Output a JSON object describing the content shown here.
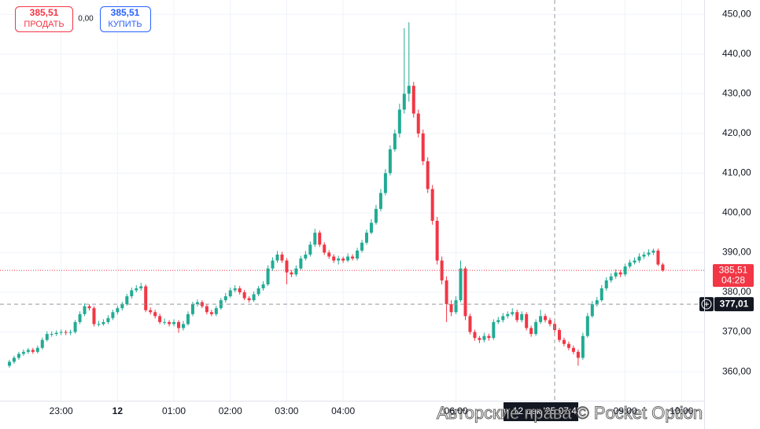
{
  "chart_data": {
    "type": "candlestick",
    "x": [
      "22:05",
      "22:10",
      "22:15",
      "22:20",
      "22:25",
      "22:30",
      "22:35",
      "22:40",
      "22:45",
      "22:50",
      "22:55",
      "23:00",
      "23:05",
      "23:10",
      "23:15",
      "23:20",
      "23:25",
      "23:30",
      "23:35",
      "23:40",
      "23:45",
      "23:50",
      "23:55",
      "00:00",
      "00:05",
      "00:10",
      "00:15",
      "00:20",
      "00:25",
      "00:30",
      "00:35",
      "00:40",
      "00:45",
      "00:50",
      "00:55",
      "01:00",
      "01:05",
      "01:10",
      "01:15",
      "01:20",
      "01:25",
      "01:30",
      "01:35",
      "01:40",
      "01:45",
      "01:50",
      "01:55",
      "02:00",
      "02:05",
      "02:10",
      "02:15",
      "02:20",
      "02:25",
      "02:30",
      "02:35",
      "02:40",
      "02:45",
      "02:50",
      "02:55",
      "03:00",
      "03:05",
      "03:10",
      "03:15",
      "03:20",
      "03:25",
      "03:30",
      "03:35",
      "03:40",
      "03:45",
      "03:50",
      "03:55",
      "04:00",
      "04:05",
      "04:10",
      "04:15",
      "04:20",
      "04:25",
      "04:30",
      "04:35",
      "04:40",
      "04:45",
      "04:50",
      "04:55",
      "05:00",
      "05:05",
      "05:10",
      "05:15",
      "05:20",
      "05:25",
      "05:30",
      "05:35",
      "05:40",
      "05:45",
      "05:50",
      "05:55",
      "06:00",
      "06:05",
      "06:10",
      "06:15",
      "06:20",
      "06:25",
      "06:30",
      "06:35",
      "06:40",
      "06:45",
      "06:50",
      "06:55",
      "07:00",
      "07:05",
      "07:10",
      "07:15",
      "07:20",
      "07:25",
      "07:30",
      "07:35",
      "07:40",
      "07:45",
      "07:50",
      "07:55",
      "08:00",
      "08:05",
      "08:10",
      "08:15",
      "08:20",
      "08:25",
      "08:30",
      "08:35",
      "08:40",
      "08:45",
      "08:50",
      "08:55",
      "09:00",
      "09:05",
      "09:10",
      "09:15",
      "09:20",
      "09:25",
      "09:30",
      "09:35",
      "09:40"
    ],
    "ohlc": [
      [
        361.5,
        363,
        361,
        362.5
      ],
      [
        362.5,
        364,
        362,
        363.5
      ],
      [
        363.5,
        365,
        363,
        364.5
      ],
      [
        364.5,
        365.6,
        364,
        365
      ],
      [
        365,
        366,
        364.5,
        365.5
      ],
      [
        365.5,
        366,
        364.5,
        365
      ],
      [
        365,
        366.6,
        364.6,
        366
      ],
      [
        366,
        368.6,
        365.6,
        368
      ],
      [
        368,
        370.2,
        367.6,
        369.5
      ],
      [
        369.5,
        370.2,
        368.8,
        369.5
      ],
      [
        369.5,
        370.4,
        369,
        369.8
      ],
      [
        369.8,
        370.6,
        369.2,
        370
      ],
      [
        370,
        370.5,
        369.2,
        369.8
      ],
      [
        369.8,
        370.6,
        369.2,
        370
      ],
      [
        370,
        373,
        369.6,
        372.5
      ],
      [
        372.5,
        375.2,
        372,
        374.5
      ],
      [
        374.5,
        377.2,
        374,
        376.5
      ],
      [
        376.5,
        377,
        375.4,
        376
      ],
      [
        376,
        376.5,
        371.4,
        372
      ],
      [
        372,
        372.8,
        371.4,
        372
      ],
      [
        372,
        373.2,
        371.6,
        372.5
      ],
      [
        372.5,
        374.2,
        372,
        373.5
      ],
      [
        373.5,
        375.6,
        373,
        375
      ],
      [
        375,
        376.6,
        374.4,
        376
      ],
      [
        376,
        377.6,
        375.4,
        377
      ],
      [
        377,
        379.6,
        376.6,
        379
      ],
      [
        379,
        381.2,
        378.4,
        380.5
      ],
      [
        380.5,
        381.8,
        380,
        381
      ],
      [
        381,
        382.4,
        380.4,
        381.5
      ],
      [
        381.5,
        382,
        375,
        375.5
      ],
      [
        375.5,
        376.2,
        374.4,
        375
      ],
      [
        375,
        375.6,
        373.4,
        374
      ],
      [
        374,
        374.6,
        372,
        372.5
      ],
      [
        372.5,
        373.4,
        371.8,
        372.5
      ],
      [
        372.5,
        373,
        371.4,
        372
      ],
      [
        372,
        373.2,
        371.4,
        372.5
      ],
      [
        372.5,
        373,
        369.8,
        371
      ],
      [
        371,
        372.8,
        370.4,
        372
      ],
      [
        372,
        375.2,
        371.6,
        374.5
      ],
      [
        374.5,
        377.6,
        374,
        377
      ],
      [
        377,
        378.2,
        376.4,
        377.5
      ],
      [
        377.5,
        378,
        376,
        376.5
      ],
      [
        376.5,
        377,
        374.4,
        375
      ],
      [
        375,
        375.6,
        374,
        374.5
      ],
      [
        374.5,
        376.6,
        374,
        376
      ],
      [
        376,
        378.6,
        375.6,
        378
      ],
      [
        378,
        379.8,
        377.4,
        379
      ],
      [
        379,
        381.2,
        378.6,
        380.5
      ],
      [
        380.5,
        381.8,
        380,
        381
      ],
      [
        381,
        381.6,
        379.4,
        380
      ],
      [
        380,
        380.6,
        378,
        378.5
      ],
      [
        378.5,
        379,
        377.4,
        378
      ],
      [
        378,
        380.2,
        377.6,
        379.5
      ],
      [
        379.5,
        381.6,
        379,
        381
      ],
      [
        381,
        382.8,
        380.4,
        382
      ],
      [
        382,
        386.8,
        381.6,
        386
      ],
      [
        386,
        388.8,
        385.4,
        388
      ],
      [
        388,
        390.4,
        387.4,
        389.5
      ],
      [
        389.5,
        390.2,
        387.4,
        388
      ],
      [
        388,
        388.6,
        382,
        385
      ],
      [
        385,
        385.6,
        383.8,
        384.5
      ],
      [
        384.5,
        386.8,
        384,
        386
      ],
      [
        386,
        389.2,
        385.6,
        388.5
      ],
      [
        388.5,
        390.4,
        388,
        389.5
      ],
      [
        389.5,
        392.8,
        389,
        392
      ],
      [
        392,
        396,
        391.4,
        395
      ],
      [
        395,
        395.6,
        391.4,
        392
      ],
      [
        392,
        392.6,
        389.4,
        390
      ],
      [
        390,
        390.6,
        388.4,
        389
      ],
      [
        389,
        389.6,
        387.4,
        388
      ],
      [
        388,
        389.2,
        387,
        388.5
      ],
      [
        388.5,
        389,
        387.4,
        388
      ],
      [
        388,
        389.8,
        387.6,
        389
      ],
      [
        389,
        389.6,
        388,
        388.5
      ],
      [
        388.5,
        391.2,
        388,
        390.5
      ],
      [
        390.5,
        393.2,
        390,
        392.5
      ],
      [
        392.5,
        395.8,
        392,
        395
      ],
      [
        395,
        398.4,
        394.6,
        397.5
      ],
      [
        397.5,
        402,
        397,
        401
      ],
      [
        401,
        406,
        400.4,
        405
      ],
      [
        405,
        411,
        404.4,
        410
      ],
      [
        410,
        417,
        409.4,
        416
      ],
      [
        416,
        421,
        415.4,
        420
      ],
      [
        420,
        427.5,
        419,
        426
      ],
      [
        426,
        446.5,
        425,
        430
      ],
      [
        430,
        448,
        428,
        432
      ],
      [
        432,
        433,
        424,
        425
      ],
      [
        425,
        426,
        419,
        420
      ],
      [
        420,
        421,
        412,
        413
      ],
      [
        413,
        414,
        405,
        406
      ],
      [
        406,
        407,
        397,
        398
      ],
      [
        398,
        399,
        387,
        388
      ],
      [
        388,
        389,
        382,
        383
      ],
      [
        383,
        384,
        372.5,
        377
      ],
      [
        377,
        378,
        374,
        375
      ],
      [
        375,
        379,
        374.5,
        378
      ],
      [
        378,
        388,
        377.5,
        386
      ],
      [
        386,
        386.5,
        373,
        374
      ],
      [
        374,
        374.6,
        369.4,
        370
      ],
      [
        370,
        370.6,
        367.8,
        368.5
      ],
      [
        368.5,
        369,
        367.2,
        368
      ],
      [
        368,
        369.8,
        367.4,
        369
      ],
      [
        369,
        369.6,
        367.8,
        368.5
      ],
      [
        368.5,
        373.2,
        368,
        372.5
      ],
      [
        372.5,
        373.8,
        372,
        373
      ],
      [
        373,
        374.8,
        372.4,
        374
      ],
      [
        374,
        375.2,
        373.4,
        374.5
      ],
      [
        374.5,
        376,
        374,
        375
      ],
      [
        375,
        375.6,
        372.4,
        373
      ],
      [
        373,
        375.2,
        372.4,
        374.5
      ],
      [
        374.5,
        375,
        370.4,
        371
      ],
      [
        371,
        371.6,
        368.8,
        369.5
      ],
      [
        369.5,
        373.2,
        369,
        372.5
      ],
      [
        372.5,
        375.6,
        372,
        374
      ],
      [
        374,
        374.6,
        372.4,
        373
      ],
      [
        373,
        373.6,
        371.4,
        372
      ],
      [
        372,
        372.6,
        369.8,
        370.5
      ],
      [
        370.5,
        371,
        367.4,
        368
      ],
      [
        368,
        368.6,
        366.4,
        367
      ],
      [
        367,
        367.6,
        365.4,
        366
      ],
      [
        366,
        366.6,
        364.4,
        365
      ],
      [
        365,
        365.6,
        361.5,
        363.5
      ],
      [
        363.5,
        369.8,
        363,
        369
      ],
      [
        369,
        374.8,
        368.6,
        374
      ],
      [
        374,
        377.8,
        373.6,
        377
      ],
      [
        377,
        378.8,
        376.4,
        378
      ],
      [
        378,
        381.8,
        377.6,
        381
      ],
      [
        381,
        383.8,
        380.4,
        383
      ],
      [
        383,
        384.8,
        382.4,
        384
      ],
      [
        384,
        385.8,
        383.4,
        385
      ],
      [
        385,
        385.6,
        383.8,
        384.5
      ],
      [
        384.5,
        387.2,
        384,
        386.5
      ],
      [
        386.5,
        388.2,
        386,
        387.5
      ],
      [
        387.5,
        388.8,
        387,
        388
      ],
      [
        388,
        389.8,
        387.4,
        389
      ],
      [
        389,
        390.2,
        388.4,
        389.5
      ],
      [
        389.5,
        390.8,
        389,
        390
      ],
      [
        390,
        391,
        389.4,
        390.5
      ],
      [
        390.5,
        391,
        386.6,
        387
      ],
      [
        387,
        387.4,
        385.2,
        385.51
      ]
    ],
    "up_color": "#22ab94",
    "down_color": "#f23645",
    "xlim": [
      "21:55",
      "10:24"
    ],
    "xticks": [
      "23:00",
      {
        "value": "00:00",
        "label": "12"
      },
      "01:00",
      "02:00",
      "03:00",
      "04:00",
      "06:00",
      "09:00",
      "10:00"
    ],
    "ylim": [
      352.7,
      453.6
    ],
    "yticks": [
      {
        "value": 360,
        "label": "360,00"
      },
      {
        "value": 370,
        "label": "370,00"
      },
      {
        "value": 380,
        "label": "380,00"
      },
      {
        "value": 390,
        "label": "390,00"
      },
      {
        "value": 400,
        "label": "400,00"
      },
      {
        "value": 410,
        "label": "410,00"
      },
      {
        "value": 420,
        "label": "420,00"
      },
      {
        "value": 430,
        "label": "430,00"
      },
      {
        "value": 440,
        "label": "440,00"
      },
      {
        "value": 450,
        "label": "450,00"
      }
    ],
    "grid": true,
    "last_price": {
      "value": 385.51,
      "label": "385,51",
      "timer": "04:28"
    },
    "crosshair": {
      "x": "07:45",
      "y": 377.01,
      "x_label": "пт 12 дек '25 07:45",
      "y_label": "377,01"
    },
    "trade_panel": {
      "sell_price": "385,51",
      "sell_label": "ПРОДАТЬ",
      "spread": "0,00",
      "buy_price": "385,51",
      "buy_label": "КУПИТЬ"
    },
    "watermark": "Авторские права © Pocket Option"
  }
}
